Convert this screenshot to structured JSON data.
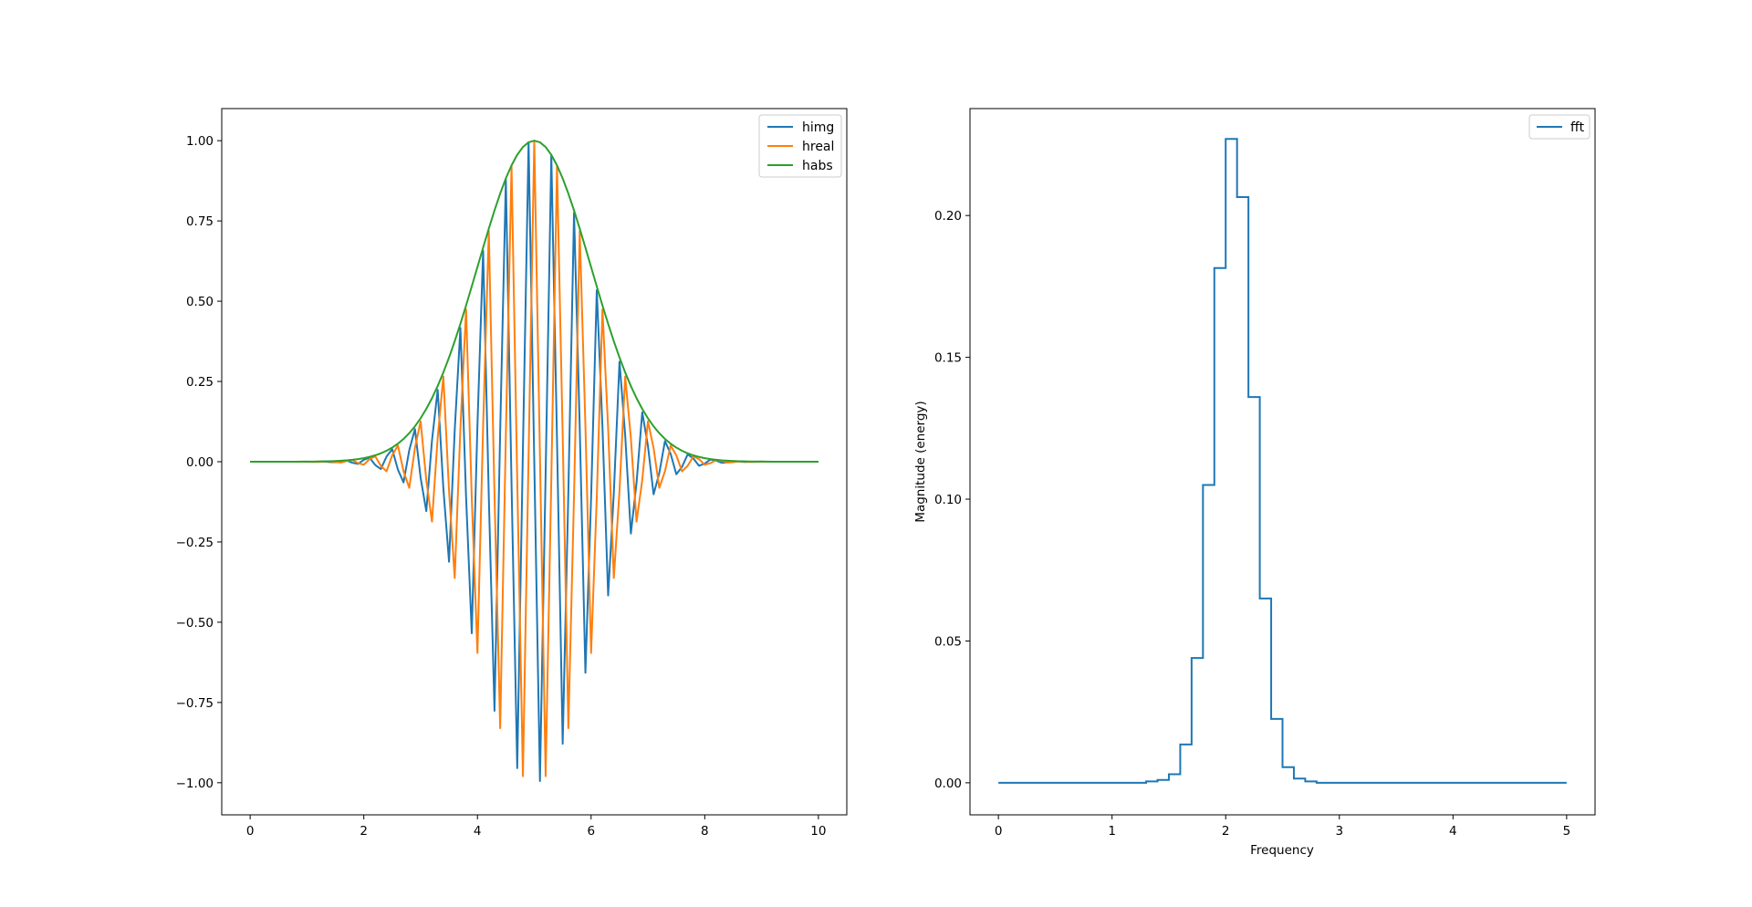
{
  "colors": {
    "himg": "#1f77b4",
    "hreal": "#ff7f0e",
    "habs": "#2ca02c",
    "fft": "#1f77b4"
  },
  "chart_data": [
    {
      "type": "line",
      "title": "",
      "xlabel": "",
      "ylabel": "",
      "xlim": [
        -0.5,
        10.5
      ],
      "ylim": [
        -1.1,
        1.1
      ],
      "xticks": [
        0,
        2,
        4,
        6,
        8,
        10
      ],
      "xtick_labels": [
        "0",
        "2",
        "4",
        "6",
        "8",
        "10"
      ],
      "yticks": [
        -1.0,
        -0.75,
        -0.5,
        -0.25,
        0.0,
        0.25,
        0.5,
        0.75,
        1.0
      ],
      "ytick_labels": [
        "−1.00",
        "−0.75",
        "−0.50",
        "−0.25",
        "0.00",
        "0.25",
        "0.50",
        "0.75",
        "1.00"
      ],
      "grid": false,
      "legend": "top-right",
      "signal": {
        "x_start": 0,
        "x_stop": 10,
        "n_points": 101,
        "envelope": "exp(-(t-5)^2/2)",
        "oscillation_hz": 2.47,
        "y_max": 1.0
      },
      "series": [
        {
          "name": "himg",
          "color_key": "himg",
          "component": "imag"
        },
        {
          "name": "hreal",
          "color_key": "hreal",
          "component": "real"
        },
        {
          "name": "habs",
          "color_key": "habs",
          "component": "abs"
        }
      ]
    },
    {
      "type": "line",
      "title": "",
      "xlabel": "Frequency",
      "ylabel": "Magnitude (energy)",
      "xlim": [
        -0.25,
        5.25
      ],
      "ylim": [
        -0.0113,
        0.2377
      ],
      "xticks": [
        0,
        1,
        2,
        3,
        4,
        5
      ],
      "xtick_labels": [
        "0",
        "1",
        "2",
        "3",
        "4",
        "5"
      ],
      "yticks": [
        0.0,
        0.05,
        0.1,
        0.15,
        0.2
      ],
      "ytick_labels": [
        "0.00",
        "0.05",
        "0.10",
        "0.15",
        "0.20"
      ],
      "grid": false,
      "legend": "top-right",
      "series": [
        {
          "name": "fft",
          "color_key": "fft",
          "step": "pre",
          "x": [
            0,
            0.1,
            0.2,
            0.3,
            0.4,
            0.5,
            0.6,
            0.7,
            0.8,
            0.9,
            1.0,
            1.1,
            1.2,
            1.3,
            1.4,
            1.5,
            1.6,
            1.7,
            1.8,
            1.9,
            2.0,
            2.1,
            2.2,
            2.3,
            2.4,
            2.5,
            2.6,
            2.7,
            2.8,
            2.9,
            3.0,
            3.1,
            3.2,
            3.3,
            3.4,
            3.5,
            3.6,
            3.7,
            3.8,
            3.9,
            4.0,
            4.1,
            4.2,
            4.3,
            4.4,
            4.5,
            4.6,
            4.7,
            4.8,
            4.9,
            5.0
          ],
          "y": [
            0,
            0,
            0,
            0,
            0,
            0,
            0,
            0,
            0,
            0,
            0,
            0,
            0,
            0,
            0.0005,
            0.001,
            0.003,
            0.0135,
            0.044,
            0.105,
            0.1815,
            0.227,
            0.2065,
            0.136,
            0.065,
            0.0225,
            0.0055,
            0.0015,
            0.0005,
            0,
            0,
            0,
            0,
            0,
            0,
            0,
            0,
            0,
            0,
            0,
            0,
            0,
            0,
            0,
            0,
            0,
            0,
            0,
            0,
            0,
            0
          ]
        }
      ]
    }
  ]
}
